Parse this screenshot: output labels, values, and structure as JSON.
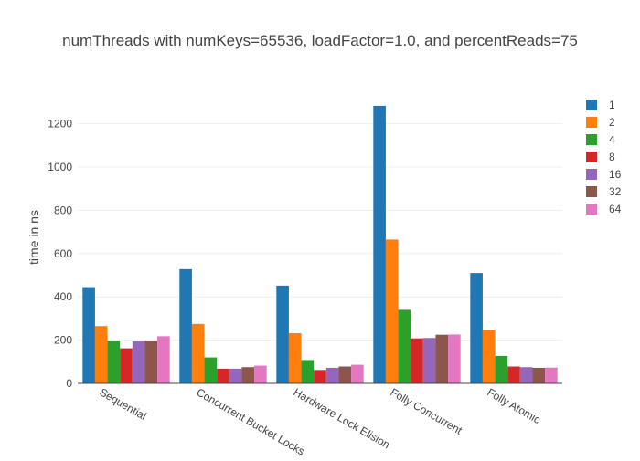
{
  "chart_data": {
    "type": "bar",
    "title": "numThreads with numKeys=65536, loadFactor=1.0, and percentReads=75",
    "xlabel": "",
    "ylabel": "time in ns",
    "ylim": [
      0,
      1300
    ],
    "yticks": [
      0,
      200,
      400,
      600,
      800,
      1000,
      1200
    ],
    "grid": true,
    "legend_position": "right",
    "categories": [
      "Sequential",
      "Concurrent Bucket Locks",
      "Hardware Lock Elision",
      "Folly Concurrent",
      "Folly Atomic"
    ],
    "series": [
      {
        "name": "1",
        "color": "#1f77b4",
        "values": [
          445,
          528,
          452,
          1283,
          510
        ]
      },
      {
        "name": "2",
        "color": "#ff7f0e",
        "values": [
          265,
          275,
          232,
          665,
          248
        ]
      },
      {
        "name": "4",
        "color": "#2ca02c",
        "values": [
          197,
          120,
          108,
          340,
          127
        ]
      },
      {
        "name": "8",
        "color": "#d62728",
        "values": [
          162,
          68,
          62,
          208,
          78
        ]
      },
      {
        "name": "16",
        "color": "#9467bd",
        "values": [
          195,
          68,
          72,
          210,
          75
        ]
      },
      {
        "name": "32",
        "color": "#8c564b",
        "values": [
          196,
          75,
          78,
          225,
          72
        ]
      },
      {
        "name": "64",
        "color": "#e377c2",
        "values": [
          218,
          82,
          86,
          226,
          73
        ]
      }
    ]
  }
}
